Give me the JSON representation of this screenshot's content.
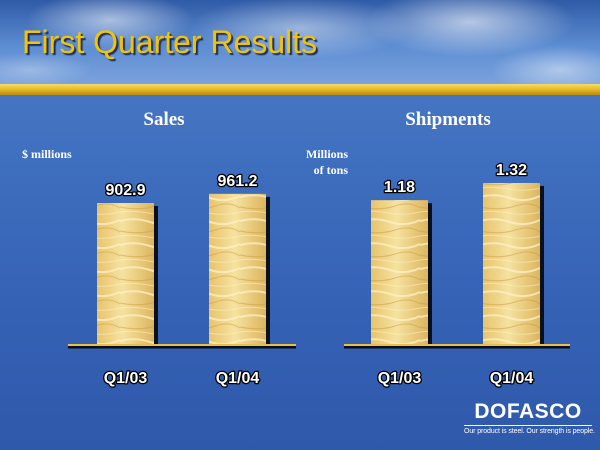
{
  "slide": {
    "title": "First Quarter Results"
  },
  "colors": {
    "title": "#f5c400",
    "bar_light": "#f4dc8f",
    "bar_dark": "#d9b45c",
    "background": "#3a66b8"
  },
  "chart_data": [
    {
      "type": "bar",
      "title": "Sales",
      "ylabel": "$ millions",
      "categories": [
        "Q1/03",
        "Q1/04"
      ],
      "values": [
        902.9,
        961.2
      ],
      "value_labels": [
        "902.9",
        "961.2"
      ],
      "ylim": [
        0,
        1100
      ],
      "grid": false
    },
    {
      "type": "bar",
      "title": "Shipments",
      "ylabel": "Millions of tons",
      "ylabel_lines": [
        "Millions",
        "of tons"
      ],
      "categories": [
        "Q1/03",
        "Q1/04"
      ],
      "values": [
        1.18,
        1.32
      ],
      "value_labels": [
        "1.18",
        "1.32"
      ],
      "ylim": [
        0,
        1.5
      ],
      "grid": false
    }
  ],
  "logo": {
    "name": "DOFASCO",
    "tagline": "Our product is steel. Our strength is people."
  }
}
